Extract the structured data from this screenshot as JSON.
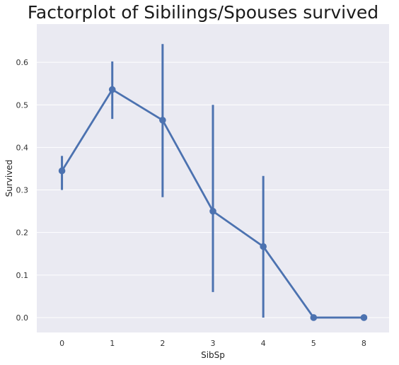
{
  "chart_data": {
    "type": "point",
    "title": "Factorplot of Sibilings/Spouses survived",
    "xlabel": "SibSp",
    "ylabel": "Survived",
    "categories": [
      "0",
      "1",
      "2",
      "3",
      "4",
      "5",
      "8"
    ],
    "values": [
      0.345,
      0.536,
      0.464,
      0.25,
      0.167,
      0.0,
      0.0
    ],
    "ci_low": [
      0.3,
      0.467,
      0.283,
      0.06,
      0.0,
      0.0,
      0.0
    ],
    "ci_high": [
      0.38,
      0.602,
      0.643,
      0.5,
      0.333,
      0.0,
      0.0
    ],
    "ylim": [
      -0.035,
      0.69
    ],
    "yticks": [
      0.0,
      0.1,
      0.2,
      0.3,
      0.4,
      0.5,
      0.6
    ],
    "ytick_labels": [
      "0.0",
      "0.1",
      "0.2",
      "0.3",
      "0.4",
      "0.5",
      "0.6"
    ],
    "grid": true,
    "legend": "none",
    "colors": {
      "series": "#4c72b0",
      "plot_background": "#eaeaf2",
      "grid": "#ffffff"
    }
  }
}
